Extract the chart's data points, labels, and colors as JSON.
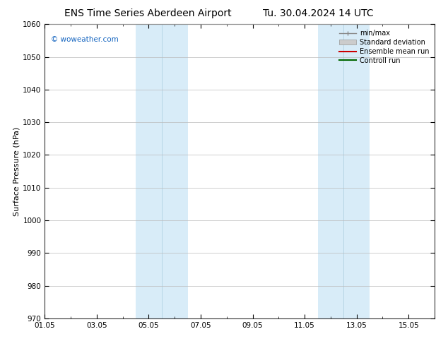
{
  "title_left": "ENS Time Series Aberdeen Airport",
  "title_right": "Tu. 30.04.2024 14 UTC",
  "ylabel": "Surface Pressure (hPa)",
  "ylim": [
    970,
    1060
  ],
  "yticks": [
    970,
    980,
    990,
    1000,
    1010,
    1020,
    1030,
    1040,
    1050,
    1060
  ],
  "xtick_labels": [
    "01.05",
    "03.05",
    "05.05",
    "07.05",
    "09.05",
    "11.05",
    "13.05",
    "15.05"
  ],
  "xtick_days": [
    0,
    2,
    4,
    6,
    8,
    10,
    12,
    14
  ],
  "shaded_bands": [
    {
      "xstart_day": 3.5,
      "xend_day": 5.5,
      "color": "#d8ecf8"
    },
    {
      "xstart_day": 10.5,
      "xend_day": 12.5,
      "color": "#d8ecf8"
    }
  ],
  "band_dividers": [
    {
      "day": 4.5
    },
    {
      "day": 11.5
    }
  ],
  "watermark": "© woweather.com",
  "watermark_color": "#1565c0",
  "legend_items": [
    {
      "label": "min/max",
      "color": "#888888",
      "type": "errbar"
    },
    {
      "label": "Standard deviation",
      "color": "#cccccc",
      "type": "fill"
    },
    {
      "label": "Ensemble mean run",
      "color": "#cc0000",
      "type": "line"
    },
    {
      "label": "Controll run",
      "color": "#006600",
      "type": "line"
    }
  ],
  "bg_color": "#ffffff",
  "plot_bg_color": "#ffffff",
  "grid_color": "#bbbbbb",
  "title_fontsize": 10,
  "axis_label_fontsize": 8,
  "tick_fontsize": 7.5,
  "legend_fontsize": 7
}
